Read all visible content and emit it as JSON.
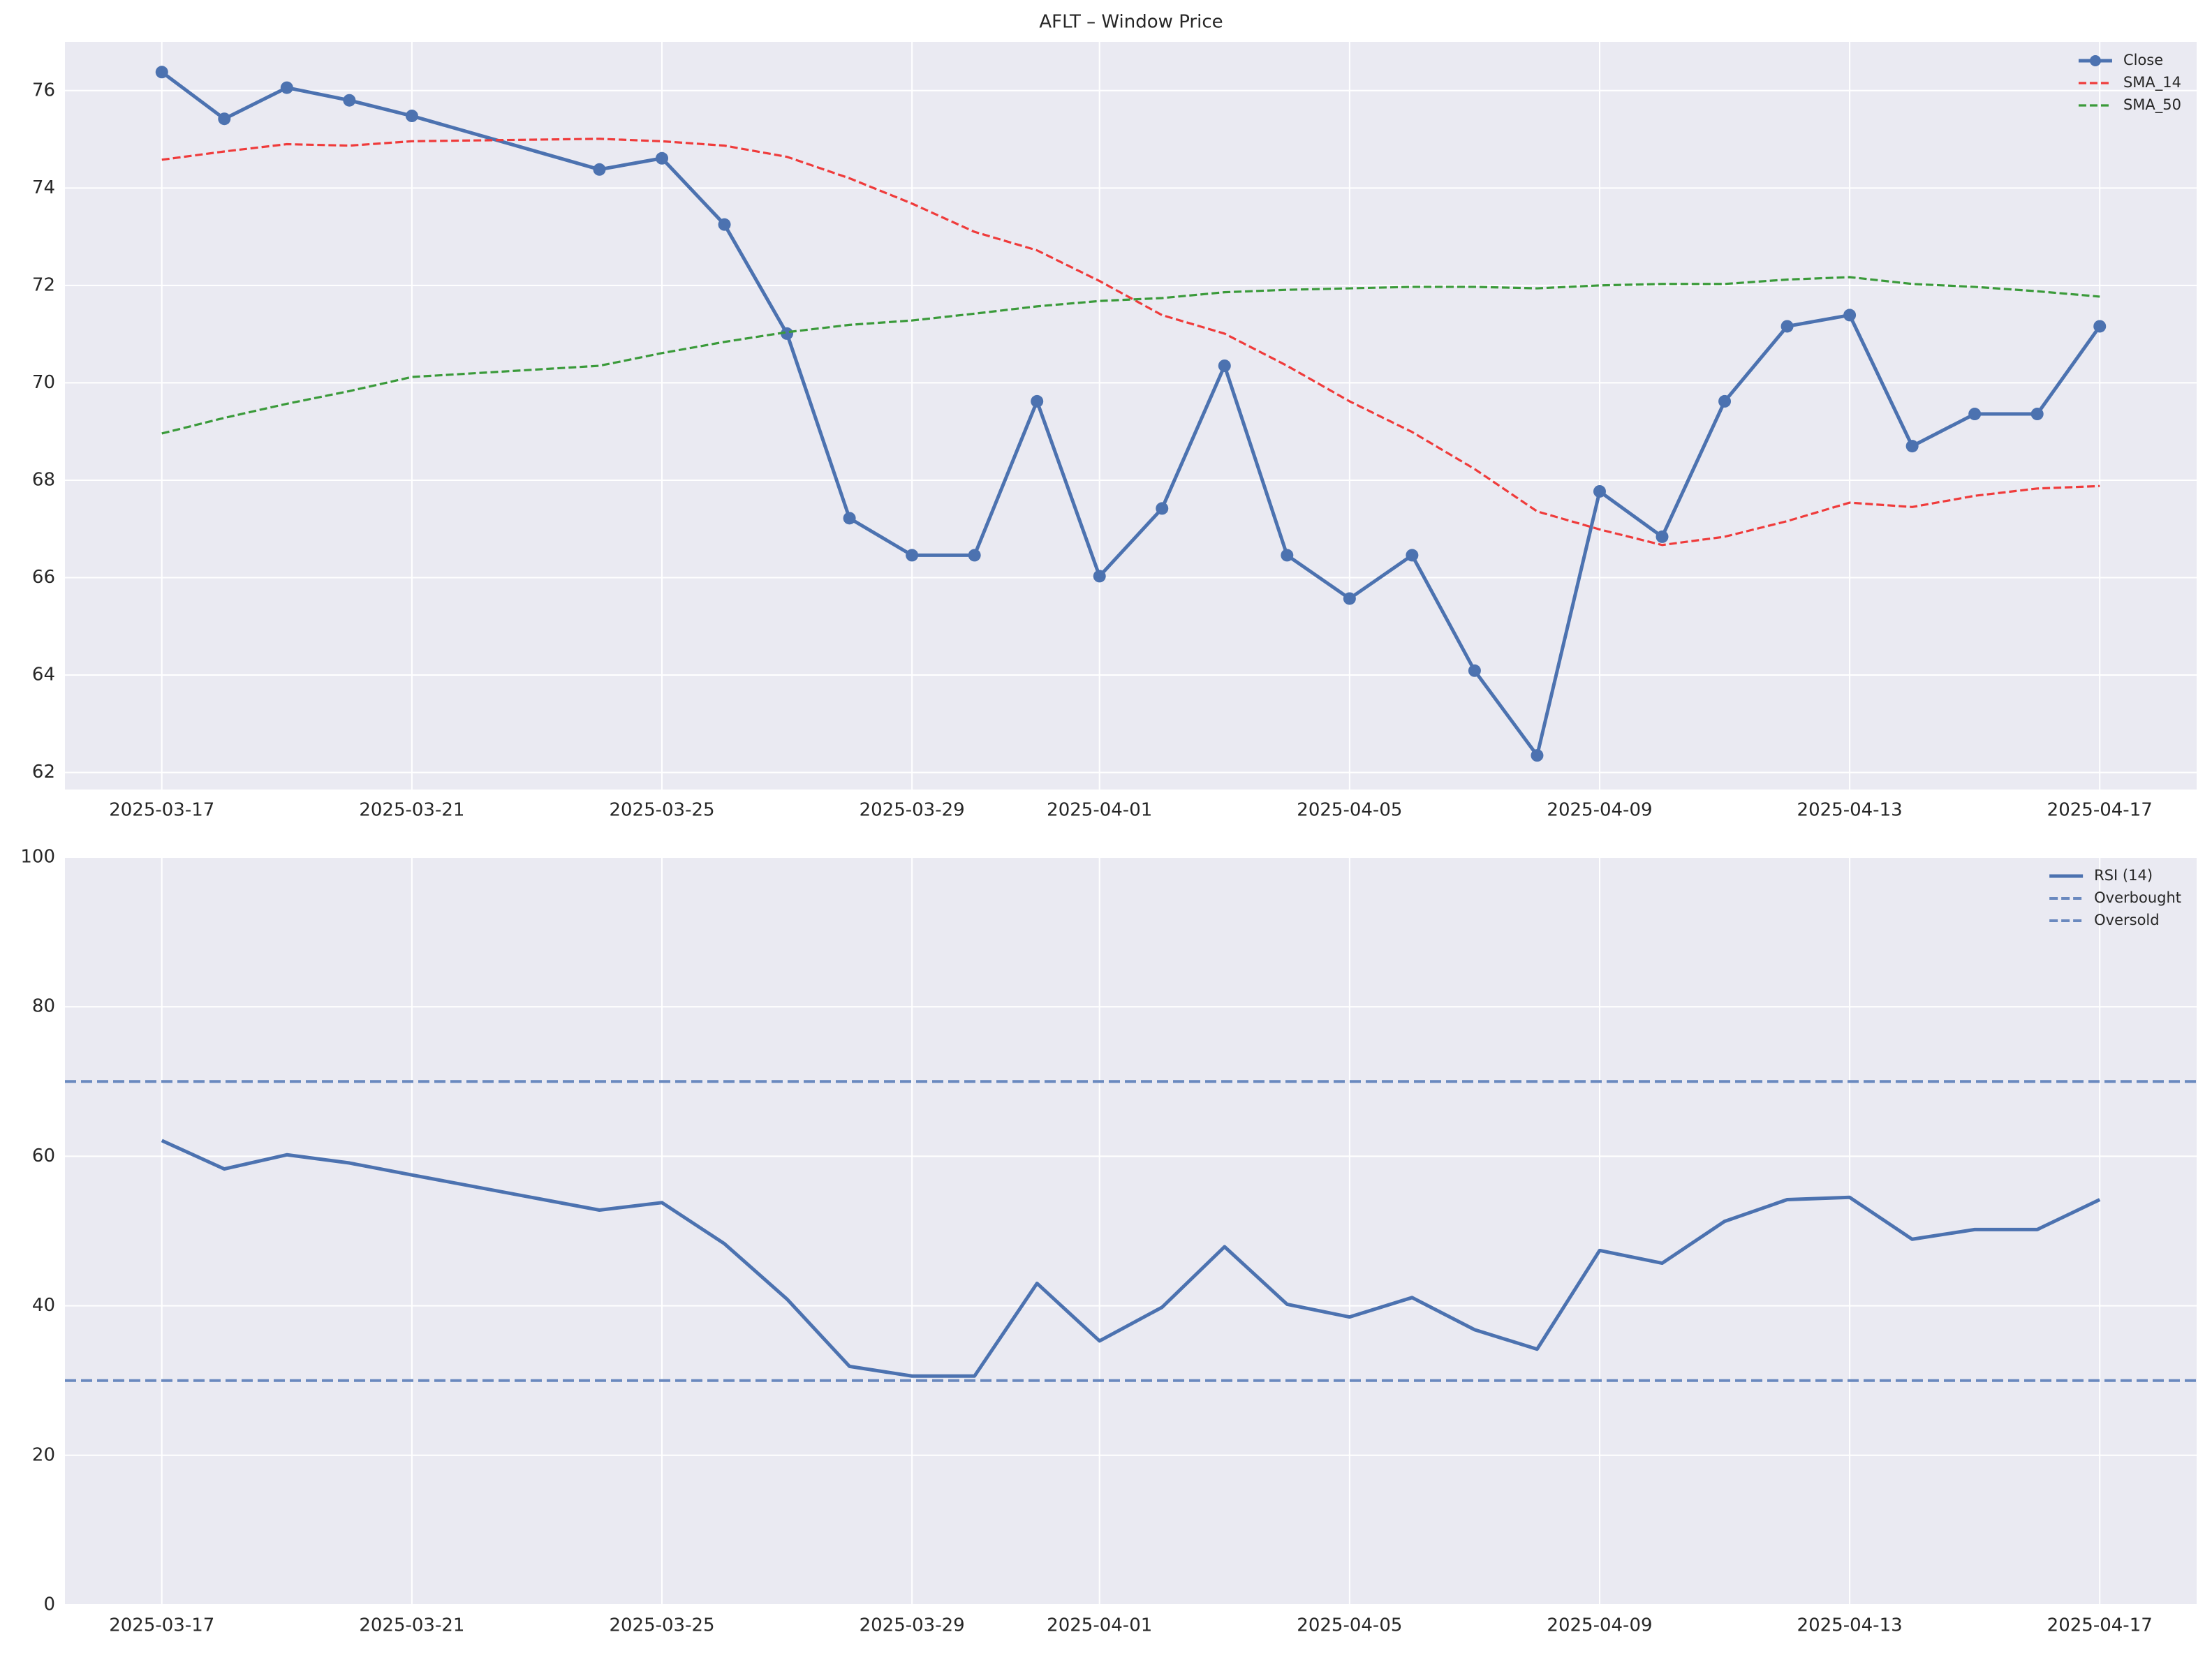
{
  "chart_data": [
    {
      "type": "line",
      "title": "AFLT – Window Price",
      "x": [
        "2025-03-17",
        "2025-03-18",
        "2025-03-19",
        "2025-03-20",
        "2025-03-21",
        "2025-03-24",
        "2025-03-25",
        "2025-03-26",
        "2025-03-27",
        "2025-03-28",
        "2025-03-29",
        "2025-03-30",
        "2025-03-31",
        "2025-04-01",
        "2025-04-02",
        "2025-04-03",
        "2025-04-04",
        "2025-04-05",
        "2025-04-06",
        "2025-04-07",
        "2025-04-08",
        "2025-04-09",
        "2025-04-10",
        "2025-04-11",
        "2025-04-12",
        "2025-04-13",
        "2025-04-14",
        "2025-04-15",
        "2025-04-16",
        "2025-04-17"
      ],
      "series": [
        {
          "name": "Close",
          "color": "#4c72b0",
          "marker": true,
          "dash": false,
          "values": [
            76.38,
            75.42,
            76.06,
            75.8,
            75.48,
            74.38,
            74.61,
            73.25,
            71.01,
            67.22,
            66.46,
            66.46,
            69.62,
            66.03,
            67.42,
            70.35,
            66.46,
            65.57,
            66.46,
            64.09,
            62.35,
            67.77,
            66.84,
            69.62,
            71.16,
            71.39,
            68.7,
            69.36,
            69.36,
            71.16
          ]
        },
        {
          "name": "SMA_14",
          "color": "#ef3b3b",
          "marker": false,
          "dash": true,
          "values": [
            74.58,
            74.75,
            74.9,
            74.87,
            74.96,
            75.01,
            74.96,
            74.87,
            74.64,
            74.2,
            73.68,
            73.1,
            72.72,
            72.09,
            71.39,
            71.01,
            70.35,
            69.62,
            68.99,
            68.23,
            67.36,
            66.99,
            66.67,
            66.84,
            67.16,
            67.54,
            67.45,
            67.68,
            67.83,
            67.88
          ]
        },
        {
          "name": "SMA_50",
          "color": "#3a9a3a",
          "marker": false,
          "dash": true,
          "values": [
            68.96,
            69.28,
            69.57,
            69.83,
            70.12,
            70.35,
            70.61,
            70.84,
            71.04,
            71.19,
            71.28,
            71.42,
            71.57,
            71.68,
            71.74,
            71.86,
            71.91,
            71.94,
            71.97,
            71.97,
            71.94,
            72.0,
            72.03,
            72.03,
            72.12,
            72.17,
            72.03,
            71.97,
            71.88,
            71.77
          ]
        }
      ],
      "ylim": [
        61.65,
        77.0
      ],
      "yticks": [
        62,
        64,
        66,
        68,
        70,
        72,
        74,
        76
      ],
      "xticks": [
        "2025-03-17",
        "2025-03-21",
        "2025-03-25",
        "2025-03-29",
        "2025-04-01",
        "2025-04-05",
        "2025-04-09",
        "2025-04-13",
        "2025-04-17"
      ],
      "grid": true,
      "legend": "upper right"
    },
    {
      "type": "line",
      "x": [
        "2025-03-17",
        "2025-03-18",
        "2025-03-19",
        "2025-03-20",
        "2025-03-21",
        "2025-03-24",
        "2025-03-25",
        "2025-03-26",
        "2025-03-27",
        "2025-03-28",
        "2025-03-29",
        "2025-03-30",
        "2025-03-31",
        "2025-04-01",
        "2025-04-02",
        "2025-04-03",
        "2025-04-04",
        "2025-04-05",
        "2025-04-06",
        "2025-04-07",
        "2025-04-08",
        "2025-04-09",
        "2025-04-10",
        "2025-04-11",
        "2025-04-12",
        "2025-04-13",
        "2025-04-14",
        "2025-04-15",
        "2025-04-16",
        "2025-04-17"
      ],
      "series": [
        {
          "name": "RSI (14)",
          "color": "#4c72b0",
          "marker": false,
          "dash": false,
          "values": [
            62.1,
            58.3,
            60.2,
            59.1,
            57.5,
            52.8,
            53.8,
            48.3,
            40.9,
            31.9,
            30.6,
            30.6,
            43.0,
            35.3,
            39.8,
            47.9,
            40.2,
            38.5,
            41.1,
            36.8,
            34.2,
            47.4,
            45.7,
            51.3,
            54.2,
            54.5,
            48.9,
            50.2,
            50.2,
            54.2
          ]
        }
      ],
      "hlines": [
        {
          "name": "Overbought",
          "value": 70,
          "color": "#6a89bf"
        },
        {
          "name": "Oversold",
          "value": 30,
          "color": "#6a89bf"
        }
      ],
      "ylim": [
        0,
        100
      ],
      "yticks": [
        0,
        20,
        40,
        60,
        80,
        100
      ],
      "xticks": [
        "2025-03-17",
        "2025-03-21",
        "2025-03-25",
        "2025-03-29",
        "2025-04-01",
        "2025-04-05",
        "2025-04-09",
        "2025-04-13",
        "2025-04-17"
      ],
      "grid": true,
      "legend": "upper right"
    }
  ]
}
